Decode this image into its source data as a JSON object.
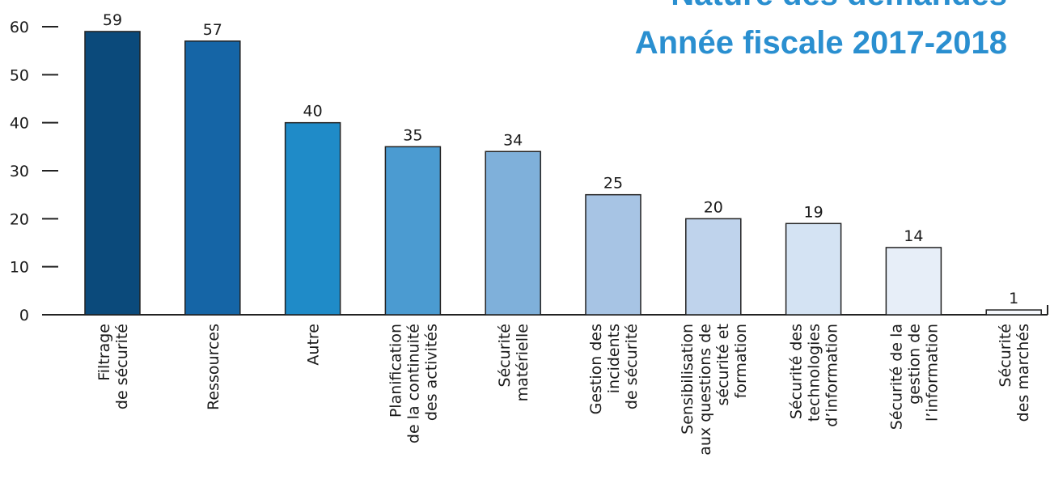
{
  "chart_data": {
    "type": "bar",
    "title": "Nature des demandes",
    "subtitle": "Année fiscale 2017-2018",
    "categories": [
      [
        "Filtrage",
        "de sécurité"
      ],
      [
        "Ressources"
      ],
      [
        "Autre"
      ],
      [
        "Planification",
        "de la continuité",
        "des activités"
      ],
      [
        "Sécurité",
        "matérielle"
      ],
      [
        "Gestion des",
        "incidents",
        "de sécurité"
      ],
      [
        "Sensibilisation",
        "aux questions de",
        "sécurité et",
        "formation"
      ],
      [
        "Sécurité des",
        "technologies",
        "d’information"
      ],
      [
        "Sécurité de la",
        "gestion de",
        "l’information"
      ],
      [
        "Sécurité",
        "des marchés"
      ]
    ],
    "values": [
      59,
      57,
      40,
      35,
      34,
      25,
      20,
      19,
      14,
      1
    ],
    "colors": [
      "#0b4a7b",
      "#1565a6",
      "#1f8bc8",
      "#4b9bd1",
      "#7fb0da",
      "#a7c4e4",
      "#bfd3ec",
      "#d4e3f3",
      "#e7eef8",
      "#f4f7fc"
    ],
    "ylim": [
      0,
      60
    ],
    "yticks": [
      0,
      10,
      20,
      30,
      40,
      50,
      60
    ]
  }
}
